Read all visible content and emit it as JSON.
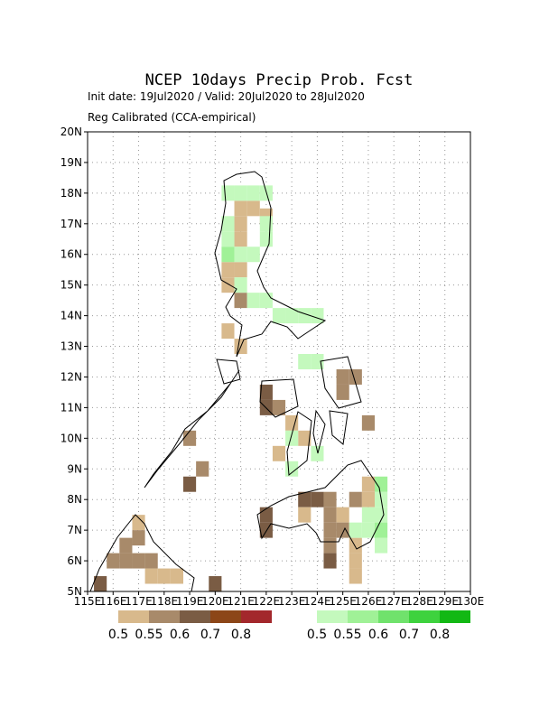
{
  "chart_data": {
    "type": "gridmap",
    "title": "NCEP 10days Precip Prob. Fcst",
    "subtitle": "Init date: 19Jul2020 / Valid: 20Jul2020 to 28Jul2020",
    "note": "Reg Calibrated (CCA-empirical)",
    "xlim": [
      115,
      130
    ],
    "ylim": [
      5,
      20
    ],
    "grid": true,
    "xticks": [
      {
        "value": 115,
        "label": "115E"
      },
      {
        "value": 116,
        "label": "116E"
      },
      {
        "value": 117,
        "label": "117E"
      },
      {
        "value": 118,
        "label": "118E"
      },
      {
        "value": 119,
        "label": "119E"
      },
      {
        "value": 120,
        "label": "120E"
      },
      {
        "value": 121,
        "label": "121E"
      },
      {
        "value": 122,
        "label": "122E"
      },
      {
        "value": 123,
        "label": "123E"
      },
      {
        "value": 124,
        "label": "124E"
      },
      {
        "value": 125,
        "label": "125E"
      },
      {
        "value": 126,
        "label": "126E"
      },
      {
        "value": 127,
        "label": "127E"
      },
      {
        "value": 128,
        "label": "128E"
      },
      {
        "value": 129,
        "label": "129E"
      },
      {
        "value": 130,
        "label": "130E"
      }
    ],
    "yticks": [
      {
        "value": 5,
        "label": "5N"
      },
      {
        "value": 6,
        "label": "6N"
      },
      {
        "value": 7,
        "label": "7N"
      },
      {
        "value": 8,
        "label": "8N"
      },
      {
        "value": 9,
        "label": "9N"
      },
      {
        "value": 10,
        "label": "10N"
      },
      {
        "value": 11,
        "label": "11N"
      },
      {
        "value": 12,
        "label": "12N"
      },
      {
        "value": 13,
        "label": "13N"
      },
      {
        "value": 14,
        "label": "14N"
      },
      {
        "value": 15,
        "label": "15N"
      },
      {
        "value": 16,
        "label": "16N"
      },
      {
        "value": 17,
        "label": "17N"
      },
      {
        "value": 18,
        "label": "18N"
      },
      {
        "value": 19,
        "label": "19N"
      },
      {
        "value": 20,
        "label": "20N"
      }
    ],
    "legends": [
      {
        "levels": [
          0.5,
          0.55,
          0.6,
          0.7,
          0.8
        ],
        "colors": [
          "#d8b98c",
          "#a88a6a",
          "#7a5c44",
          "#8c4618",
          "#a3282c"
        ]
      },
      {
        "levels": [
          0.5,
          0.55,
          0.6,
          0.7,
          0.8
        ],
        "colors": [
          "#c4f9bd",
          "#a0f197",
          "#70e26c",
          "#3ed23e",
          "#12b814"
        ]
      }
    ],
    "cells": [
      {
        "legend": 0,
        "items": [
          {
            "lon": 120.75,
            "lat": 17.25,
            "p": 0.5
          },
          {
            "lon": 121.25,
            "lat": 17.25,
            "p": 0.5
          },
          {
            "lon": 120.75,
            "lat": 16.75,
            "p": 0.5
          },
          {
            "lon": 121.75,
            "lat": 17.0,
            "p": 0.5
          },
          {
            "lon": 120.75,
            "lat": 16.25,
            "p": 0.5
          },
          {
            "lon": 120.25,
            "lat": 15.25,
            "p": 0.5
          },
          {
            "lon": 120.75,
            "lat": 15.25,
            "p": 0.5
          },
          {
            "lon": 120.25,
            "lat": 14.75,
            "p": 0.5
          },
          {
            "lon": 120.75,
            "lat": 14.25,
            "p": 0.55
          },
          {
            "lon": 120.25,
            "lat": 13.25,
            "p": 0.5
          },
          {
            "lon": 120.75,
            "lat": 12.75,
            "p": 0.5
          },
          {
            "lon": 124.75,
            "lat": 11.75,
            "p": 0.55
          },
          {
            "lon": 125.25,
            "lat": 11.75,
            "p": 0.55
          },
          {
            "lon": 124.75,
            "lat": 11.25,
            "p": 0.55
          },
          {
            "lon": 125.75,
            "lat": 10.25,
            "p": 0.55
          },
          {
            "lon": 121.75,
            "lat": 11.25,
            "p": 0.6
          },
          {
            "lon": 121.75,
            "lat": 10.75,
            "p": 0.6
          },
          {
            "lon": 122.25,
            "lat": 10.75,
            "p": 0.55
          },
          {
            "lon": 122.75,
            "lat": 10.25,
            "p": 0.5
          },
          {
            "lon": 122.25,
            "lat": 9.25,
            "p": 0.5
          },
          {
            "lon": 123.25,
            "lat": 9.75,
            "p": 0.5
          },
          {
            "lon": 123.25,
            "lat": 7.75,
            "p": 0.6
          },
          {
            "lon": 123.75,
            "lat": 7.75,
            "p": 0.6
          },
          {
            "lon": 124.25,
            "lat": 7.75,
            "p": 0.55
          },
          {
            "lon": 123.25,
            "lat": 7.25,
            "p": 0.5
          },
          {
            "lon": 124.25,
            "lat": 7.25,
            "p": 0.55
          },
          {
            "lon": 124.75,
            "lat": 7.25,
            "p": 0.5
          },
          {
            "lon": 124.25,
            "lat": 6.75,
            "p": 0.55
          },
          {
            "lon": 124.25,
            "lat": 6.25,
            "p": 0.55
          },
          {
            "lon": 124.75,
            "lat": 6.75,
            "p": 0.55
          },
          {
            "lon": 124.25,
            "lat": 5.75,
            "p": 0.6
          },
          {
            "lon": 125.25,
            "lat": 7.75,
            "p": 0.55
          },
          {
            "lon": 125.75,
            "lat": 7.75,
            "p": 0.5
          },
          {
            "lon": 125.75,
            "lat": 8.25,
            "p": 0.5
          },
          {
            "lon": 125.25,
            "lat": 6.25,
            "p": 0.5
          },
          {
            "lon": 125.25,
            "lat": 5.75,
            "p": 0.5
          },
          {
            "lon": 125.25,
            "lat": 5.25,
            "p": 0.5
          },
          {
            "lon": 121.75,
            "lat": 7.25,
            "p": 0.6
          },
          {
            "lon": 121.75,
            "lat": 6.75,
            "p": 0.6
          },
          {
            "lon": 118.75,
            "lat": 9.75,
            "p": 0.55
          },
          {
            "lon": 119.25,
            "lat": 8.75,
            "p": 0.55
          },
          {
            "lon": 118.75,
            "lat": 8.25,
            "p": 0.6
          },
          {
            "lon": 116.75,
            "lat": 7.0,
            "p": 0.5
          },
          {
            "lon": 116.75,
            "lat": 6.5,
            "p": 0.55
          },
          {
            "lon": 116.25,
            "lat": 6.25,
            "p": 0.55
          },
          {
            "lon": 116.25,
            "lat": 5.75,
            "p": 0.55
          },
          {
            "lon": 116.75,
            "lat": 5.75,
            "p": 0.55
          },
          {
            "lon": 117.25,
            "lat": 5.75,
            "p": 0.55
          },
          {
            "lon": 115.75,
            "lat": 5.75,
            "p": 0.55
          },
          {
            "lon": 115.25,
            "lat": 5.0,
            "p": 0.6
          },
          {
            "lon": 117.25,
            "lat": 5.25,
            "p": 0.5
          },
          {
            "lon": 117.75,
            "lat": 5.25,
            "p": 0.5
          },
          {
            "lon": 118.25,
            "lat": 5.25,
            "p": 0.5
          },
          {
            "lon": 119.75,
            "lat": 5.0,
            "p": 0.6
          }
        ]
      },
      {
        "legend": 1,
        "items": [
          {
            "lon": 120.25,
            "lat": 17.75,
            "p": 0.5
          },
          {
            "lon": 120.75,
            "lat": 17.75,
            "p": 0.5
          },
          {
            "lon": 121.25,
            "lat": 17.75,
            "p": 0.5
          },
          {
            "lon": 121.75,
            "lat": 17.75,
            "p": 0.5
          },
          {
            "lon": 121.75,
            "lat": 16.75,
            "p": 0.5
          },
          {
            "lon": 121.75,
            "lat": 16.25,
            "p": 0.5
          },
          {
            "lon": 120.25,
            "lat": 16.75,
            "p": 0.5
          },
          {
            "lon": 120.25,
            "lat": 16.25,
            "p": 0.5
          },
          {
            "lon": 120.25,
            "lat": 15.75,
            "p": 0.55
          },
          {
            "lon": 120.75,
            "lat": 15.75,
            "p": 0.5
          },
          {
            "lon": 121.25,
            "lat": 15.75,
            "p": 0.5
          },
          {
            "lon": 120.75,
            "lat": 14.75,
            "p": 0.5
          },
          {
            "lon": 121.25,
            "lat": 14.25,
            "p": 0.5
          },
          {
            "lon": 121.75,
            "lat": 14.25,
            "p": 0.5
          },
          {
            "lon": 122.25,
            "lat": 13.75,
            "p": 0.5
          },
          {
            "lon": 122.75,
            "lat": 13.75,
            "p": 0.5
          },
          {
            "lon": 123.25,
            "lat": 13.75,
            "p": 0.5
          },
          {
            "lon": 123.75,
            "lat": 13.75,
            "p": 0.5
          },
          {
            "lon": 123.25,
            "lat": 12.25,
            "p": 0.5
          },
          {
            "lon": 123.75,
            "lat": 12.25,
            "p": 0.5
          },
          {
            "lon": 122.75,
            "lat": 9.75,
            "p": 0.5
          },
          {
            "lon": 122.75,
            "lat": 8.75,
            "p": 0.5
          },
          {
            "lon": 123.75,
            "lat": 9.25,
            "p": 0.5
          },
          {
            "lon": 125.75,
            "lat": 7.25,
            "p": 0.5
          },
          {
            "lon": 125.75,
            "lat": 6.75,
            "p": 0.5
          },
          {
            "lon": 126.25,
            "lat": 7.75,
            "p": 0.5
          },
          {
            "lon": 126.25,
            "lat": 7.25,
            "p": 0.5
          },
          {
            "lon": 125.25,
            "lat": 6.75,
            "p": 0.5
          },
          {
            "lon": 126.25,
            "lat": 6.25,
            "p": 0.5
          },
          {
            "lon": 126.25,
            "lat": 8.25,
            "p": 0.55
          },
          {
            "lon": 126.25,
            "lat": 6.75,
            "p": 0.55
          }
        ]
      }
    ]
  }
}
